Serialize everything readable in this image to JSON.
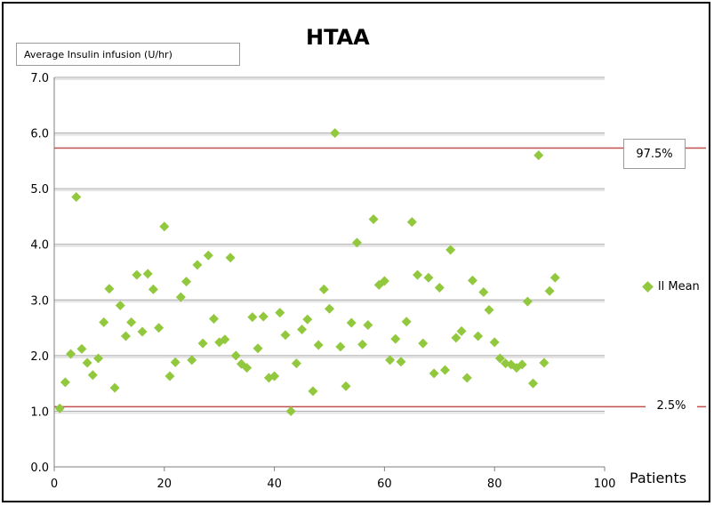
{
  "chart_data": {
    "type": "scatter",
    "title": "HTAA",
    "ylabel": "Average Insulin  infusion  (U/hr)",
    "xlabel": "Patients",
    "xlim": [
      0,
      100
    ],
    "ylim": [
      0,
      7
    ],
    "x_ticks": [
      "0",
      "20",
      "40",
      "60",
      "80",
      "100"
    ],
    "y_ticks": [
      "0.0",
      "1.0",
      "2.0",
      "3.0",
      "4.0",
      "5.0",
      "6.0",
      "7.0"
    ],
    "grid": true,
    "marker_color": "#92c83e",
    "reference_color": "#c0504d",
    "legend_position": "right",
    "reference_lines": [
      {
        "label": "97.5%",
        "y": 5.73
      },
      {
        "label": "2.5%",
        "y": 1.08
      }
    ],
    "series": [
      {
        "name": "ll Mean",
        "points": [
          [
            1,
            1.05
          ],
          [
            2,
            1.52
          ],
          [
            3,
            2.03
          ],
          [
            4,
            4.85
          ],
          [
            5,
            2.12
          ],
          [
            6,
            1.87
          ],
          [
            7,
            1.65
          ],
          [
            8,
            1.95
          ],
          [
            9,
            2.6
          ],
          [
            10,
            3.2
          ],
          [
            11,
            1.42
          ],
          [
            12,
            2.9
          ],
          [
            13,
            2.35
          ],
          [
            14,
            2.6
          ],
          [
            15,
            3.45
          ],
          [
            16,
            2.43
          ],
          [
            17,
            3.47
          ],
          [
            18,
            3.19
          ],
          [
            19,
            2.5
          ],
          [
            20,
            4.32
          ],
          [
            21,
            1.63
          ],
          [
            22,
            1.88
          ],
          [
            23,
            3.05
          ],
          [
            24,
            3.33
          ],
          [
            25,
            1.92
          ],
          [
            26,
            3.63
          ],
          [
            27,
            2.22
          ],
          [
            28,
            3.8
          ],
          [
            29,
            2.66
          ],
          [
            30,
            2.24
          ],
          [
            31,
            2.29
          ],
          [
            32,
            3.76
          ],
          [
            33,
            2.0
          ],
          [
            34,
            1.85
          ],
          [
            35,
            1.78
          ],
          [
            36,
            2.69
          ],
          [
            37,
            2.13
          ],
          [
            38,
            2.7
          ],
          [
            39,
            1.6
          ],
          [
            40,
            1.63
          ],
          [
            41,
            2.77
          ],
          [
            42,
            2.37
          ],
          [
            43,
            1.0
          ],
          [
            44,
            1.86
          ],
          [
            45,
            2.47
          ],
          [
            46,
            2.65
          ],
          [
            47,
            1.36
          ],
          [
            48,
            2.19
          ],
          [
            49,
            3.19
          ],
          [
            50,
            2.84
          ],
          [
            51,
            6.0
          ],
          [
            52,
            2.16
          ],
          [
            53,
            1.45
          ],
          [
            54,
            2.59
          ],
          [
            55,
            4.03
          ],
          [
            56,
            2.2
          ],
          [
            57,
            2.55
          ],
          [
            58,
            4.45
          ],
          [
            59,
            3.27
          ],
          [
            60,
            3.34
          ],
          [
            61,
            1.92
          ],
          [
            62,
            2.3
          ],
          [
            63,
            1.89
          ],
          [
            64,
            2.61
          ],
          [
            65,
            4.4
          ],
          [
            66,
            3.45
          ],
          [
            67,
            2.22
          ],
          [
            68,
            3.4
          ],
          [
            69,
            1.68
          ],
          [
            70,
            3.22
          ],
          [
            71,
            1.74
          ],
          [
            72,
            3.9
          ],
          [
            73,
            2.32
          ],
          [
            74,
            2.44
          ],
          [
            75,
            1.6
          ],
          [
            76,
            3.35
          ],
          [
            77,
            2.35
          ],
          [
            78,
            3.14
          ],
          [
            79,
            2.82
          ],
          [
            80,
            2.24
          ],
          [
            81,
            1.95
          ],
          [
            82,
            1.86
          ],
          [
            83,
            1.84
          ],
          [
            84,
            1.78
          ],
          [
            85,
            1.84
          ],
          [
            86,
            2.97
          ],
          [
            87,
            1.5
          ],
          [
            88,
            5.6
          ],
          [
            89,
            1.87
          ],
          [
            90,
            3.16
          ],
          [
            91,
            3.4
          ]
        ]
      }
    ]
  }
}
